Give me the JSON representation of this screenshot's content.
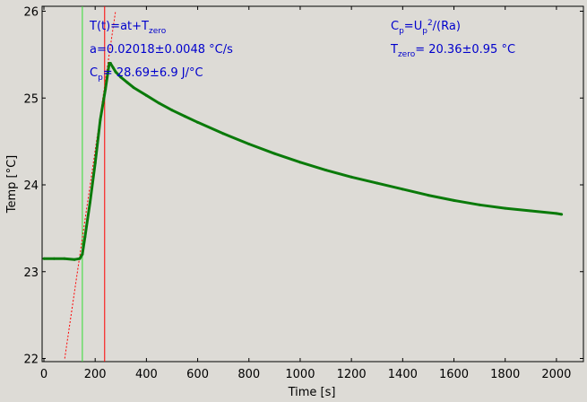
{
  "chart_data": {
    "type": "line",
    "xlabel": "Time [s]",
    "ylabel": "Temp [°C]",
    "xlim": [
      0,
      2100
    ],
    "ylim": [
      22,
      26
    ],
    "x_ticks": [
      0,
      200,
      400,
      600,
      800,
      1000,
      1200,
      1400,
      1600,
      1800,
      2000
    ],
    "y_ticks": [
      22,
      23,
      24,
      25,
      26
    ],
    "grid": false,
    "colors": {
      "background": "#dddbd6",
      "data": "#0a7a0a",
      "fit_line": "#ff0000",
      "start_marker": "#33dd33",
      "stop_marker": "#ff0000",
      "annotation_text": "#0000cc"
    },
    "series": [
      {
        "x": [
          0,
          40,
          80,
          120,
          140,
          150,
          160,
          180,
          200,
          220,
          240,
          250,
          255,
          260,
          270,
          280,
          300,
          325,
          350,
          400,
          450,
          500,
          550,
          600,
          700,
          800,
          900,
          1000,
          1100,
          1200,
          1300,
          1400,
          1500,
          1600,
          1700,
          1800,
          1900,
          2000,
          2020
        ],
        "y": [
          23.15,
          23.15,
          23.15,
          23.14,
          23.15,
          23.2,
          23.4,
          23.8,
          24.25,
          24.75,
          25.1,
          25.3,
          25.4,
          25.4,
          25.35,
          25.3,
          25.24,
          25.18,
          25.12,
          25.03,
          24.94,
          24.86,
          24.79,
          24.72,
          24.59,
          24.47,
          24.36,
          24.26,
          24.17,
          24.09,
          24.02,
          23.95,
          23.88,
          23.82,
          23.77,
          23.73,
          23.7,
          23.67,
          23.66
        ]
      }
    ],
    "fit_line": {
      "slope": 0.02018,
      "intercept": 20.36
    },
    "vertical_markers": [
      150,
      237
    ],
    "annotations": {
      "formula": {
        "base": "T(t)=at+T",
        "sub": "zero"
      },
      "a_value": "a=0.02018±0.0048 °C/s",
      "cp_value": {
        "base": "C",
        "sub": "p",
        "rest": "= 28.69±6.9 J/°C"
      },
      "cp_formula": {
        "c": "C",
        "sub1": "p",
        "mid": "=U",
        "sub2": "p",
        "sup": "2",
        "end": "/(Ra)"
      },
      "tzero_value": {
        "base": "T",
        "sub": "zero",
        "rest": "= 20.36±0.95 °C"
      }
    }
  }
}
